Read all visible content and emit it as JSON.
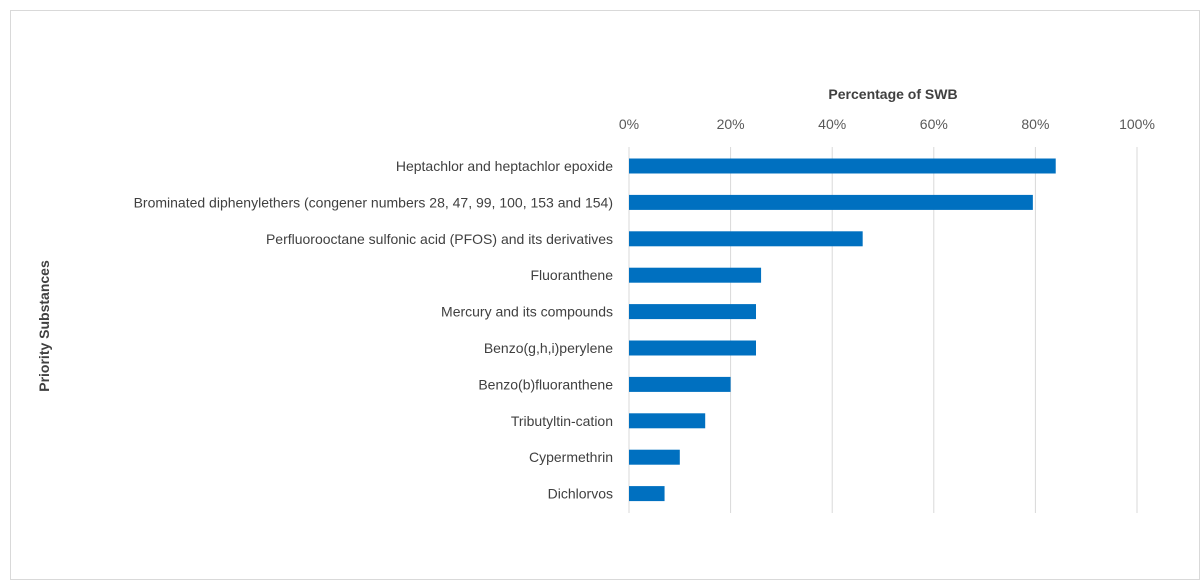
{
  "chart_data": {
    "type": "bar",
    "orientation": "horizontal",
    "xlabel": "Percentage of SWB",
    "ylabel": "Priority Substances",
    "xlim": [
      0,
      100
    ],
    "x_ticks": [
      "0%",
      "20%",
      "40%",
      "60%",
      "80%",
      "100%"
    ],
    "x_tick_values": [
      0,
      20,
      40,
      60,
      80,
      100
    ],
    "x_axis_position": "top",
    "grid": true,
    "bar_color": "#0070c0",
    "categories": [
      "Heptachlor and heptachlor epoxide",
      "Brominated diphenylethers (congener numbers 28, 47, 99, 100, 153 and 154)",
      "Perfluorooctane sulfonic acid (PFOS) and its derivatives",
      "Fluoranthene",
      "Mercury and its compounds",
      "Benzo(g,h,i)perylene",
      "Benzo(b)fluoranthene",
      "Tributyltin-cation",
      "Cypermethrin",
      "Dichlorvos"
    ],
    "values": [
      84,
      79.5,
      46,
      26,
      25,
      25,
      20,
      15,
      10,
      7
    ]
  }
}
